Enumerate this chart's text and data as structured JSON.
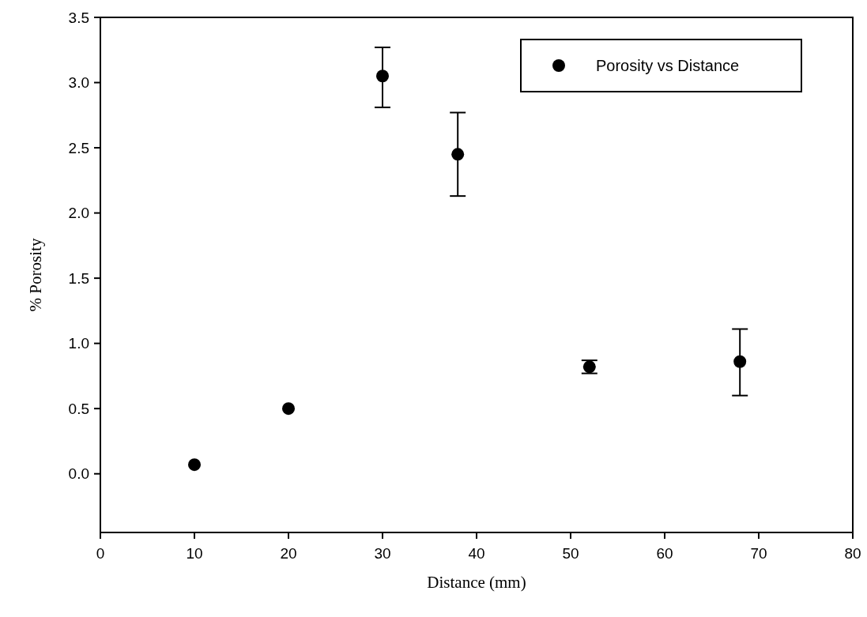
{
  "chart_data": {
    "type": "scatter",
    "xlabel": "Distance (mm)",
    "ylabel": "% Porosity",
    "xlim": [
      0,
      80
    ],
    "xticks": [
      0,
      10,
      20,
      30,
      40,
      50,
      60,
      70,
      80
    ],
    "ylim": [
      -0.45,
      3.5
    ],
    "yticks": [
      {
        "value": 0,
        "label": "0.0"
      },
      {
        "value": 0.5,
        "label": "0.5"
      },
      {
        "value": 1,
        "label": "1.0"
      },
      {
        "value": 1.5,
        "label": "1.5"
      },
      {
        "value": 2,
        "label": "2.0"
      },
      {
        "value": 2.5,
        "label": "2.5"
      },
      {
        "value": 3,
        "label": "3.0"
      },
      {
        "value": 3.5,
        "label": "3.5"
      }
    ],
    "series": [
      {
        "name": "Porosity vs Distance",
        "color": "#000000",
        "x": [
          10,
          20,
          30,
          38,
          52,
          68
        ],
        "values": [
          0.07,
          0.5,
          3.05,
          2.45,
          0.82,
          0.86
        ],
        "errors": [
          null,
          null,
          [
            2.81,
            3.27
          ],
          [
            2.13,
            2.77
          ],
          [
            0.77,
            0.87
          ],
          [
            0.6,
            1.11
          ]
        ]
      }
    ],
    "marker": "circle",
    "legend": "top right",
    "grid": false
  }
}
